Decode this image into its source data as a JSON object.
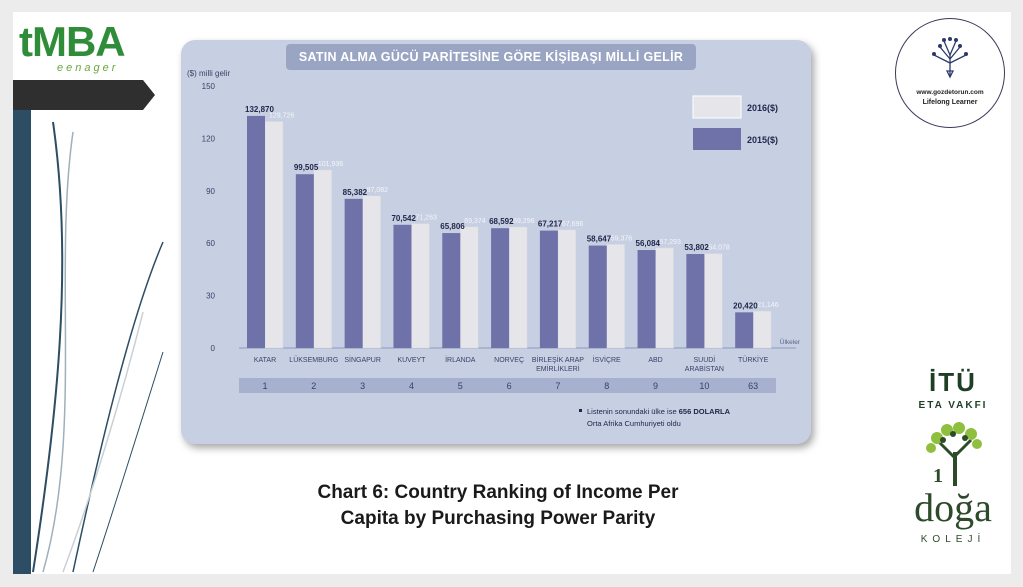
{
  "brand": {
    "logo_main": "tMBA",
    "logo_sub": "eenager"
  },
  "right_logo": {
    "url": "www.gozdetorun.com",
    "tagline": "Lifelong Learner"
  },
  "sponsor": {
    "itu": "İTÜ",
    "itu_sub": "ETA VAKFI",
    "school_mark": "1",
    "school": "doğa",
    "school_sub": "KOLEJİ"
  },
  "caption": {
    "line1": "Chart 6: Country Ranking of Income Per",
    "line2": "Capita by Purchasing Power Parity"
  },
  "chart_data": {
    "type": "bar",
    "title": "SATIN ALMA GÜCÜ PARİTESİNE GÖRE KİŞİBAŞI MİLLİ GELİR",
    "ylabel": "($) milli gelir",
    "xlabel": "Ülkeler",
    "ylim": [
      0,
      150
    ],
    "yticks": [
      0,
      30,
      60,
      90,
      120,
      150
    ],
    "categories": [
      "KATAR",
      "LÜKSEMBURG",
      "SİNGAPUR",
      "KUVEYT",
      "İRLANDA",
      "NORVEÇ",
      "BİRLEŞİK ARAP EMİRLİKLERİ",
      "İSVİÇRE",
      "ABD",
      "SUUDİ ARABİSTAN",
      "TÜRKİYE"
    ],
    "ranks": [
      "1",
      "2",
      "3",
      "4",
      "5",
      "6",
      "7",
      "8",
      "9",
      "10",
      "63"
    ],
    "series": [
      {
        "name": "2015($)",
        "values": [
          132.87,
          99.505,
          85.382,
          70.542,
          65.806,
          68.592,
          67.217,
          58.647,
          56.084,
          53.802,
          20.42
        ],
        "labels": [
          "132,870",
          "99,505",
          "85,382",
          "70,542",
          "65,806",
          "68,592",
          "67,217",
          "58,647",
          "56,084",
          "53,802",
          "20,420"
        ],
        "color": "#6e72a8"
      },
      {
        "name": "2016($)",
        "values": [
          129.726,
          101.936,
          87.082,
          71.263,
          69.374,
          69.296,
          67.696,
          59.376,
          57.293,
          54.078,
          21.146
        ],
        "labels": [
          "129,726",
          "101,936",
          "87,082",
          "71,263",
          "69,374",
          "69,296",
          "67,696",
          "59,376",
          "57,293",
          "54,078",
          "21,146"
        ],
        "color": "#e6e6ea"
      }
    ],
    "legend_position": "top-right",
    "note_prefix": "Listenin sonundaki ülke ise ",
    "note_bold": "656 DOLARLA",
    "note_line2": "Orta Afrika Cumhuriyeti oldu"
  }
}
